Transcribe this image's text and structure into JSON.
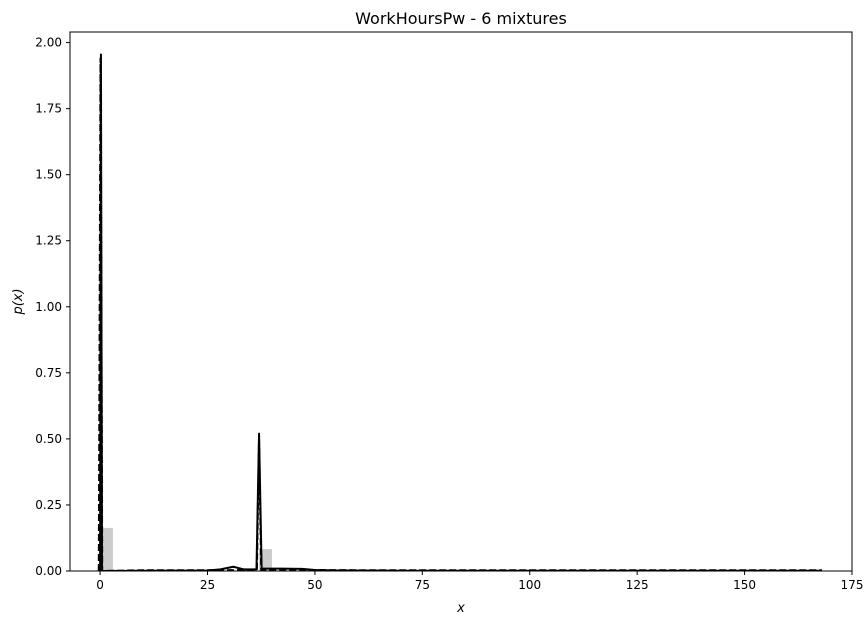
{
  "chart_data": {
    "type": "line",
    "title": "WorkHoursPw - 6 mixtures",
    "xlabel": "x",
    "ylabel": "p(x)",
    "xlim": [
      -7,
      175
    ],
    "ylim": [
      0,
      2.04
    ],
    "x_ticks": [
      0,
      25,
      50,
      75,
      100,
      125,
      150,
      175
    ],
    "y_ticks": [
      0.0,
      0.25,
      0.5,
      0.75,
      1.0,
      1.25,
      1.5,
      1.75,
      2.0
    ],
    "x_tick_labels": [
      "0",
      "25",
      "50",
      "75",
      "100",
      "125",
      "150",
      "175"
    ],
    "y_tick_labels": [
      "0.00",
      "0.25",
      "0.50",
      "0.75",
      "1.00",
      "1.25",
      "1.50",
      "1.75",
      "2.00"
    ],
    "histogram": {
      "color": "#cccccc",
      "bins": [
        {
          "x0": 0,
          "x1": 3,
          "density": 0.163
        },
        {
          "x0": 37,
          "x1": 40,
          "density": 0.083
        }
      ]
    },
    "series": [
      {
        "style": "solid",
        "color": "#000000",
        "points": [
          [
            0,
            0
          ],
          [
            0.2,
            1.955
          ],
          [
            0.45,
            0
          ],
          [
            10,
            0.001
          ],
          [
            25,
            0.002
          ],
          [
            28,
            0.006
          ],
          [
            31,
            0.016
          ],
          [
            33.5,
            0.006
          ],
          [
            36.4,
            0.006
          ],
          [
            37,
            0.52
          ],
          [
            37.6,
            0.009
          ],
          [
            42,
            0.009
          ],
          [
            47,
            0.008
          ],
          [
            50,
            0.004
          ],
          [
            55,
            0.002
          ],
          [
            70,
            0.001
          ],
          [
            100,
            0.001
          ],
          [
            168,
            0.001
          ]
        ]
      },
      {
        "style": "dashed",
        "color": "#000000",
        "points": [
          [
            -0.3,
            0
          ],
          [
            0.1,
            1.94
          ],
          [
            0.5,
            0
          ],
          [
            10,
            0.003
          ],
          [
            25,
            0.003
          ],
          [
            36.5,
            0.004
          ],
          [
            37,
            0.5
          ],
          [
            37.5,
            0.004
          ],
          [
            45,
            0.004
          ],
          [
            60,
            0.003
          ],
          [
            100,
            0.003
          ],
          [
            168,
            0.003
          ]
        ]
      }
    ],
    "grid": false,
    "legend": "none"
  }
}
